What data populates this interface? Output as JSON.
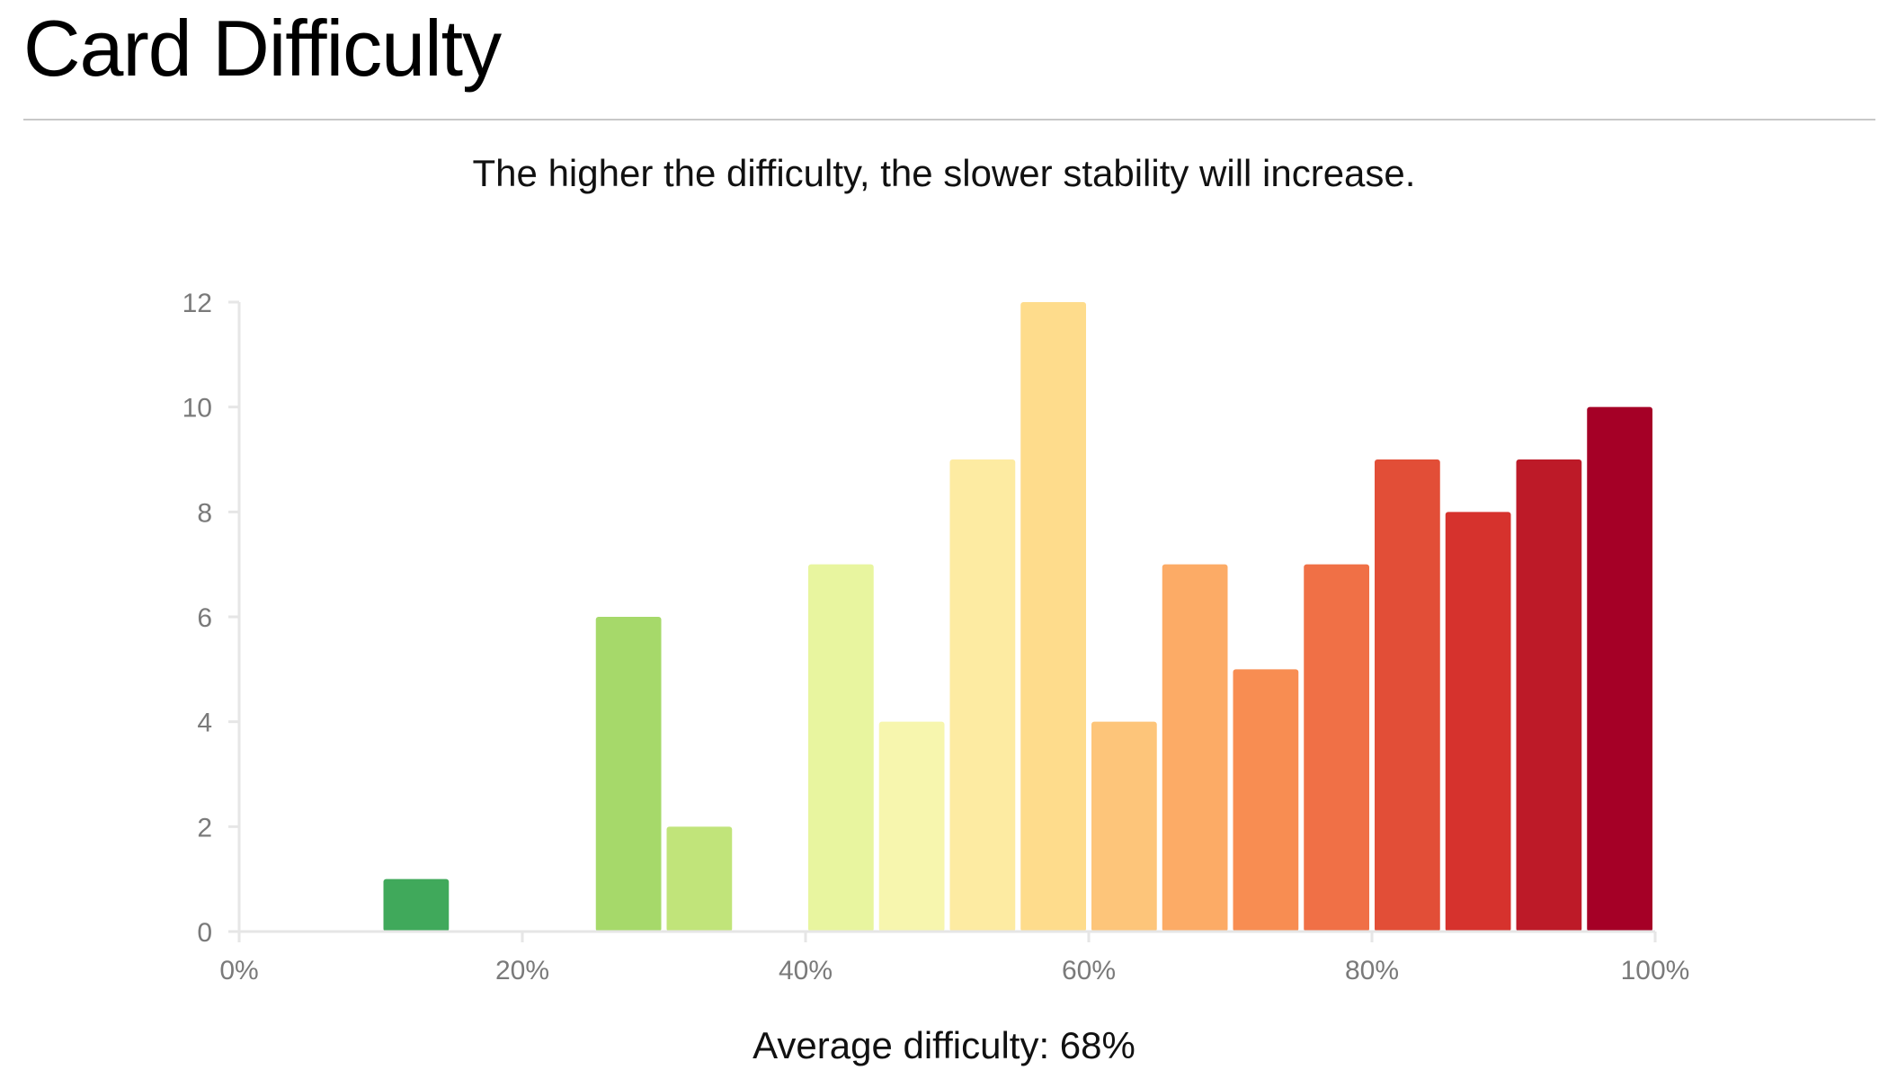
{
  "page": {
    "title": "Card Difficulty",
    "subtitle": "The higher the difficulty, the slower stability will increase."
  },
  "summary": {
    "label": "Average difficulty:",
    "value": "68%"
  },
  "chart_data": {
    "type": "bar",
    "title": "",
    "xlabel": "",
    "ylabel": "",
    "xlim": [
      0,
      100
    ],
    "ylim": [
      0,
      12
    ],
    "x_ticks": [
      "0%",
      "20%",
      "40%",
      "60%",
      "80%",
      "100%"
    ],
    "x_tick_values": [
      0,
      20,
      40,
      60,
      80,
      100
    ],
    "y_ticks": [
      "0",
      "2",
      "4",
      "6",
      "8",
      "10",
      "12"
    ],
    "y_tick_values": [
      0,
      2,
      4,
      6,
      8,
      10,
      12
    ],
    "grid": false,
    "bins": [
      {
        "start": 0,
        "end": 5,
        "count": 0,
        "color": "#006837"
      },
      {
        "start": 5,
        "end": 10,
        "count": 0,
        "color": "#1a9850"
      },
      {
        "start": 10,
        "end": 15,
        "count": 1,
        "color": "#40a95b"
      },
      {
        "start": 15,
        "end": 20,
        "count": 0,
        "color": "#66bd63"
      },
      {
        "start": 20,
        "end": 25,
        "count": 0,
        "color": "#8dcc6a"
      },
      {
        "start": 25,
        "end": 30,
        "count": 6,
        "color": "#a6d96a"
      },
      {
        "start": 30,
        "end": 35,
        "count": 2,
        "color": "#c1e47a"
      },
      {
        "start": 35,
        "end": 40,
        "count": 0,
        "color": "#d9ef8b"
      },
      {
        "start": 40,
        "end": 45,
        "count": 7,
        "color": "#e8f59f"
      },
      {
        "start": 45,
        "end": 50,
        "count": 4,
        "color": "#f7f6ae"
      },
      {
        "start": 50,
        "end": 55,
        "count": 9,
        "color": "#fdeba2"
      },
      {
        "start": 55,
        "end": 60,
        "count": 12,
        "color": "#fedc8c"
      },
      {
        "start": 60,
        "end": 65,
        "count": 4,
        "color": "#fdc57a"
      },
      {
        "start": 65,
        "end": 70,
        "count": 7,
        "color": "#fcab66"
      },
      {
        "start": 70,
        "end": 75,
        "count": 5,
        "color": "#f88d52"
      },
      {
        "start": 75,
        "end": 80,
        "count": 7,
        "color": "#f07046"
      },
      {
        "start": 80,
        "end": 85,
        "count": 9,
        "color": "#e24e37"
      },
      {
        "start": 85,
        "end": 90,
        "count": 8,
        "color": "#d6322d"
      },
      {
        "start": 90,
        "end": 95,
        "count": 9,
        "color": "#bd1a28"
      },
      {
        "start": 95,
        "end": 100,
        "count": 10,
        "color": "#a50026"
      }
    ],
    "colors": {
      "axis": "#e6e6e6",
      "tick_label": "#7a7a7a"
    }
  }
}
